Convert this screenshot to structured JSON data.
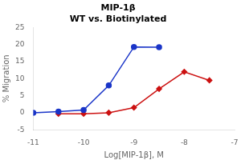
{
  "chart_data": {
    "type": "line",
    "title": "MIP-1β\nWT vs. Biotinylated",
    "x_label": "Log[MIP-1β], M",
    "y_label": "% Migration",
    "xlim": [
      -11,
      -7
    ],
    "xticks": [
      -11,
      -10,
      -9,
      -8,
      -7
    ],
    "ylim": [
      -5,
      25
    ],
    "yticks": [
      -5,
      0,
      5,
      10,
      15,
      20,
      25
    ],
    "grid": false,
    "series": [
      {
        "color": "#1a35c8",
        "marker": "circle",
        "x": [
          -11,
          -10.5,
          -10,
          -9.5,
          -9,
          -8.5
        ],
        "values": [
          0,
          0.3,
          0.8,
          8,
          19.3,
          19.2
        ]
      },
      {
        "color": "#cc1111",
        "marker": "diamond",
        "x": [
          -10.5,
          -10,
          -9.5,
          -9,
          -8.5,
          -8,
          -7.5
        ],
        "values": [
          -0.3,
          -0.3,
          0.0,
          1.5,
          7.0,
          12.0,
          9.5
        ]
      }
    ]
  }
}
